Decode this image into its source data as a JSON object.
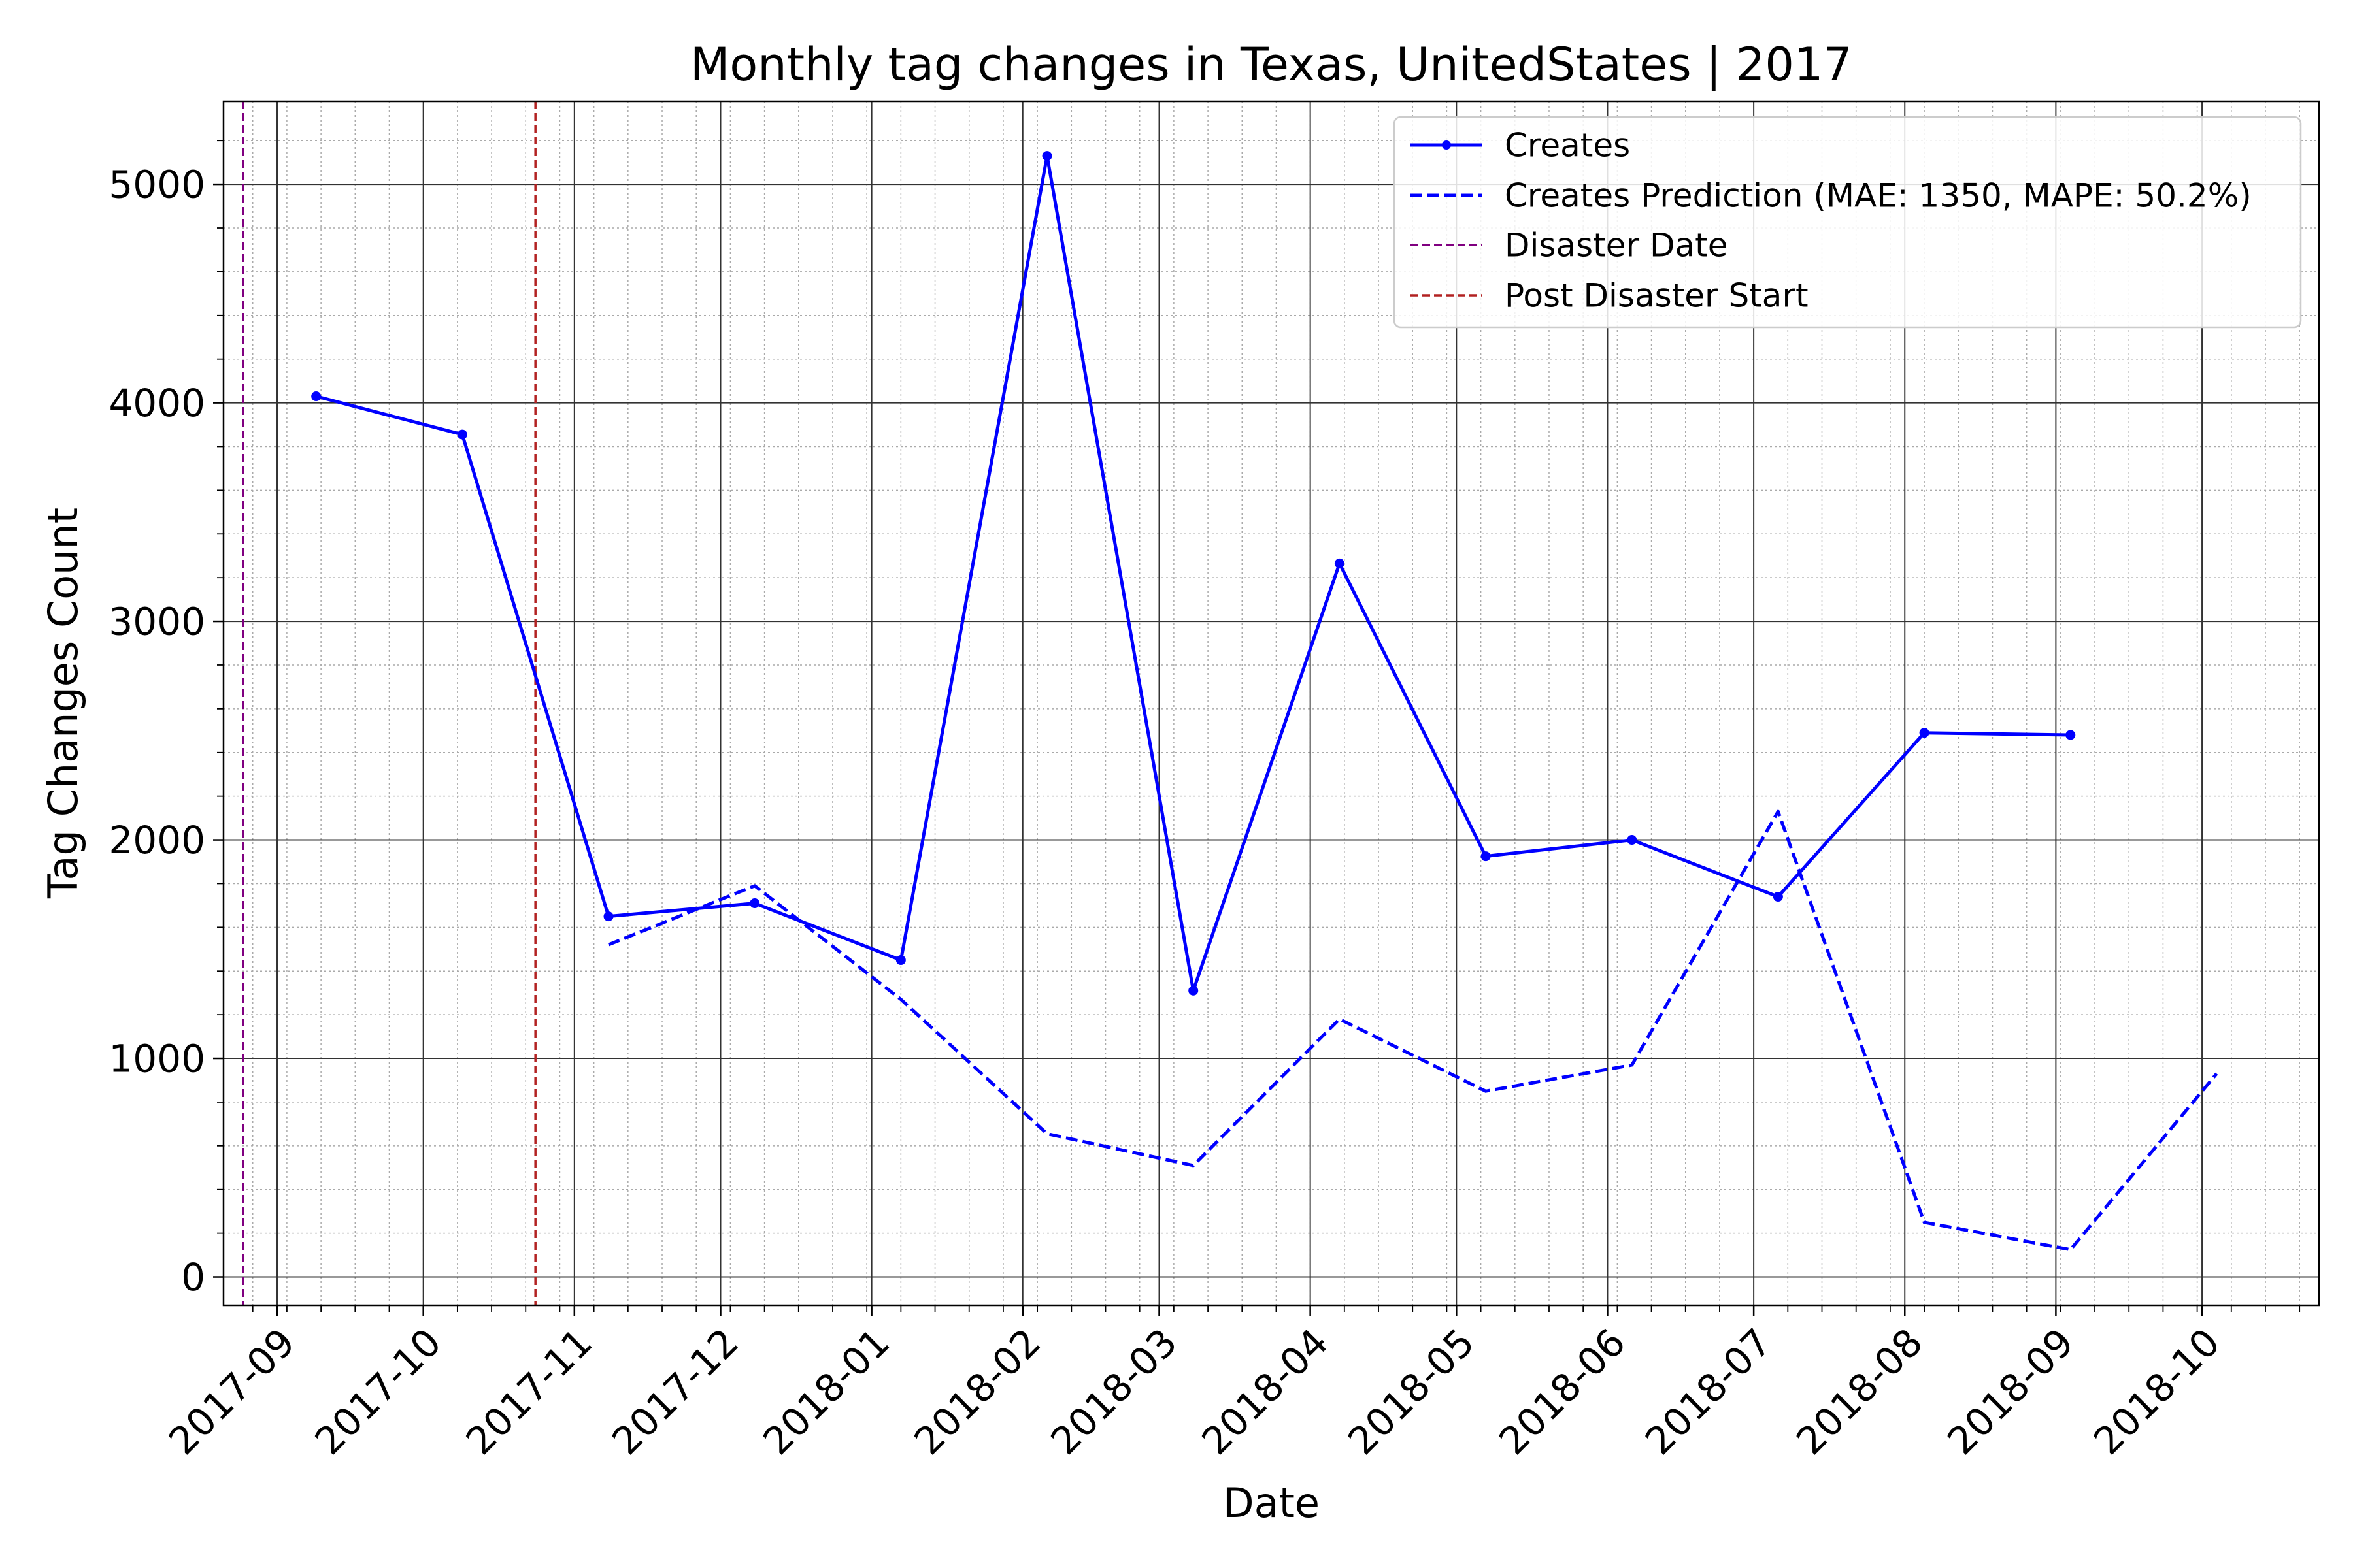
{
  "chart_data": {
    "type": "line",
    "title": "Monthly tag changes in Texas, UnitedStates | 2017",
    "xlabel": "Date",
    "ylabel": "Tag Changes Count",
    "x_tick_labels": [
      "2017-09",
      "2017-10",
      "2017-11",
      "2017-12",
      "2018-01",
      "2018-02",
      "2018-03",
      "2018-04",
      "2018-05",
      "2018-06",
      "2018-07",
      "2018-08",
      "2018-09",
      "2018-10"
    ],
    "x_tick_dates": [
      "2017-09-01",
      "2017-10-01",
      "2017-11-01",
      "2017-12-01",
      "2018-01-01",
      "2018-02-01",
      "2018-03-01",
      "2018-04-01",
      "2018-05-01",
      "2018-06-01",
      "2018-07-01",
      "2018-08-01",
      "2018-09-01",
      "2018-10-01"
    ],
    "xlim": [
      "2017-08-21",
      "2018-10-25"
    ],
    "ylim": [
      -130,
      5380
    ],
    "y_ticks": [
      0,
      1000,
      2000,
      3000,
      4000,
      5000
    ],
    "y_minor_step": 200,
    "grid": true,
    "legend_position": "top-right",
    "series": [
      {
        "name": "Creates",
        "style": "solid",
        "marker": "circle",
        "color": "#0000ff",
        "x": [
          "2017-09-09",
          "2017-10-09",
          "2017-11-08",
          "2017-12-08",
          "2018-01-07",
          "2018-02-06",
          "2018-03-08",
          "2018-04-07",
          "2018-05-07",
          "2018-06-06",
          "2018-07-06",
          "2018-08-05",
          "2018-09-04"
        ],
        "values": [
          4030,
          3855,
          1650,
          1710,
          1450,
          5130,
          1310,
          3265,
          1925,
          2000,
          1740,
          2490,
          2480
        ]
      },
      {
        "name": "Creates Prediction (MAE: 1350, MAPE: 50.2%)",
        "style": "dashed",
        "color": "#0000ff",
        "x": [
          "2017-11-08",
          "2017-12-08",
          "2018-01-07",
          "2018-02-06",
          "2018-03-08",
          "2018-04-07",
          "2018-05-07",
          "2018-06-06",
          "2018-07-06",
          "2018-08-05",
          "2018-09-04",
          "2018-10-04"
        ],
        "values": [
          1520,
          1790,
          1270,
          655,
          510,
          1180,
          850,
          970,
          2130,
          250,
          125,
          930
        ]
      }
    ],
    "vertical_lines": [
      {
        "name": "Disaster Date",
        "x": "2017-08-25",
        "color": "#800080",
        "style": "dashed"
      },
      {
        "name": "Post Disaster Start",
        "x": "2017-10-24",
        "color": "#b22222",
        "style": "dashed"
      }
    ]
  }
}
